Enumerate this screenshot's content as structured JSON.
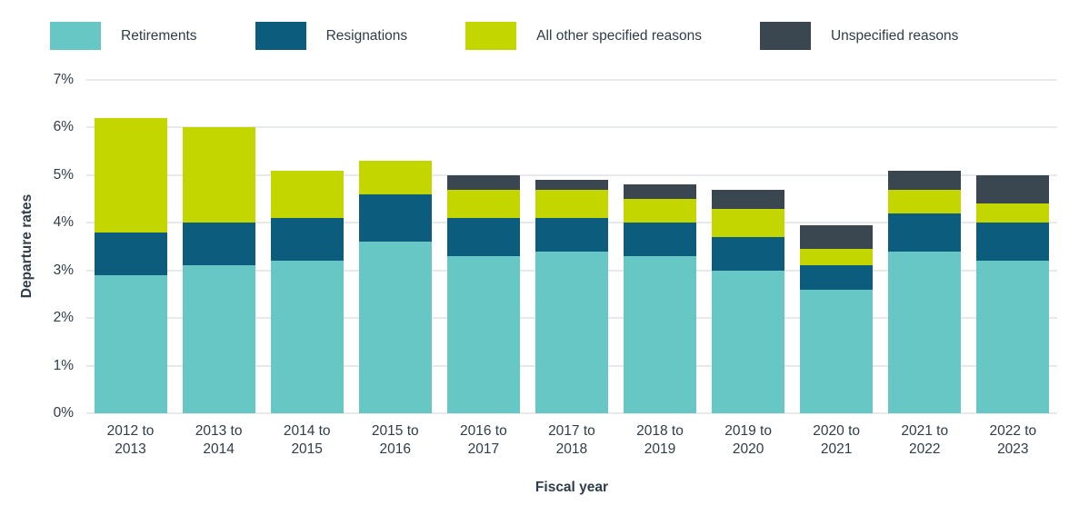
{
  "chart_data": {
    "type": "bar",
    "stacked": true,
    "title": "",
    "xlabel": "Fiscal year",
    "ylabel": "Departure rates",
    "ylim": [
      0,
      7
    ],
    "yticks": [
      0,
      1,
      2,
      3,
      4,
      5,
      6,
      7
    ],
    "ytick_suffix": "%",
    "grid": true,
    "legend_position": "top",
    "categories": [
      "2012 to 2013",
      "2013 to 2014",
      "2014 to 2015",
      "2015 to 2016",
      "2016 to 2017",
      "2017 to 2018",
      "2018 to 2019",
      "2019 to 2020",
      "2020 to 2021",
      "2021 to 2022",
      "2022 to 2023"
    ],
    "series": [
      {
        "name": "Retirements",
        "color": "#67C7C5",
        "values": [
          2.9,
          3.1,
          3.2,
          3.6,
          3.3,
          3.4,
          3.3,
          3.0,
          2.6,
          3.4,
          3.2
        ]
      },
      {
        "name": "Resignations",
        "color": "#0C5C7D",
        "values": [
          0.9,
          0.9,
          0.9,
          1.0,
          0.8,
          0.7,
          0.7,
          0.7,
          0.5,
          0.8,
          0.8
        ]
      },
      {
        "name": "All other specified reasons",
        "color": "#C4D600",
        "values": [
          2.4,
          2.0,
          1.0,
          0.7,
          0.6,
          0.6,
          0.5,
          0.6,
          0.35,
          0.5,
          0.4
        ]
      },
      {
        "name": "Unspecified reasons",
        "color": "#3B4750",
        "values": [
          0,
          0,
          0,
          0,
          0.3,
          0.2,
          0.3,
          0.4,
          0.5,
          0.4,
          0.6
        ]
      }
    ]
  }
}
